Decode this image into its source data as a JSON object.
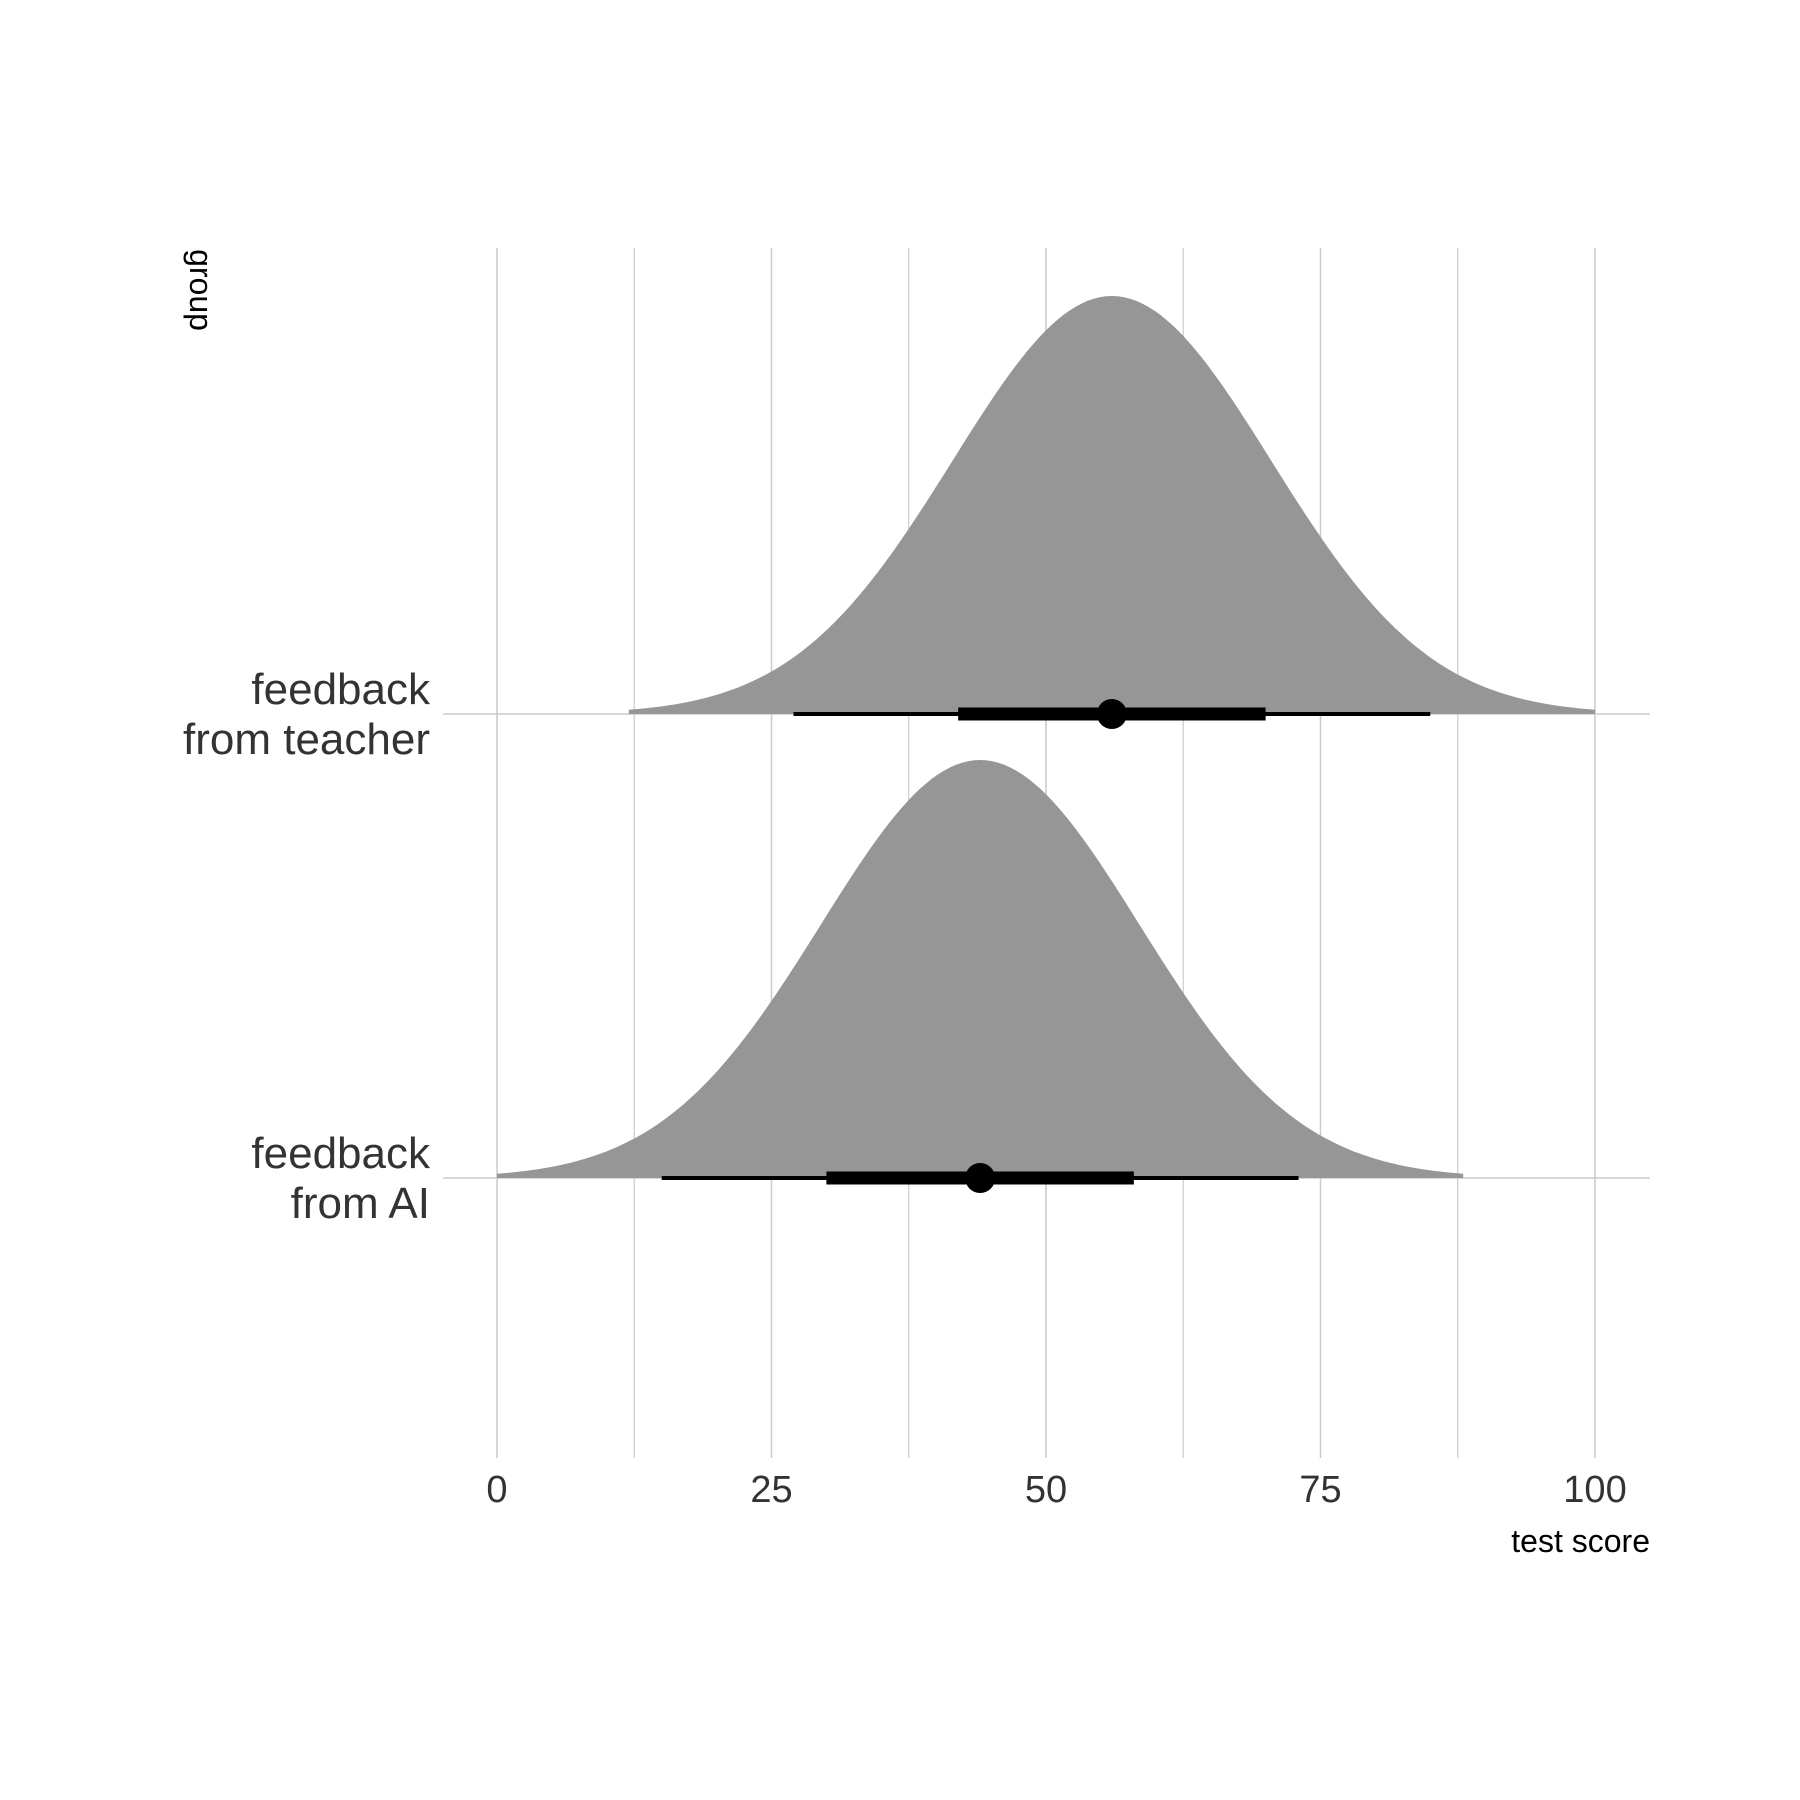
{
  "chart_data": {
    "type": "density",
    "xlabel": "test score",
    "ylabel": "group",
    "xlim": [
      0,
      100
    ],
    "x_ticks": [
      0,
      25,
      50,
      75,
      100
    ],
    "grid": true,
    "colors": {
      "density": "#969696",
      "interval": "#000000",
      "grid": "#cccccc",
      "text": "#333333"
    },
    "series": [
      {
        "name": "feedback\nfrom teacher",
        "label_lines": [
          "feedback",
          "from teacher"
        ],
        "mean": 56,
        "sd": 14.5,
        "range": [
          12,
          100
        ],
        "point": 56,
        "interval_66": [
          42,
          70
        ],
        "interval_95": [
          27,
          85
        ]
      },
      {
        "name": "feedback\nfrom AI",
        "label_lines": [
          "feedback",
          "from AI"
        ],
        "mean": 44,
        "sd": 14.5,
        "range": [
          0,
          88
        ],
        "point": 44,
        "interval_66": [
          30,
          58
        ],
        "interval_95": [
          15,
          73
        ]
      }
    ]
  }
}
